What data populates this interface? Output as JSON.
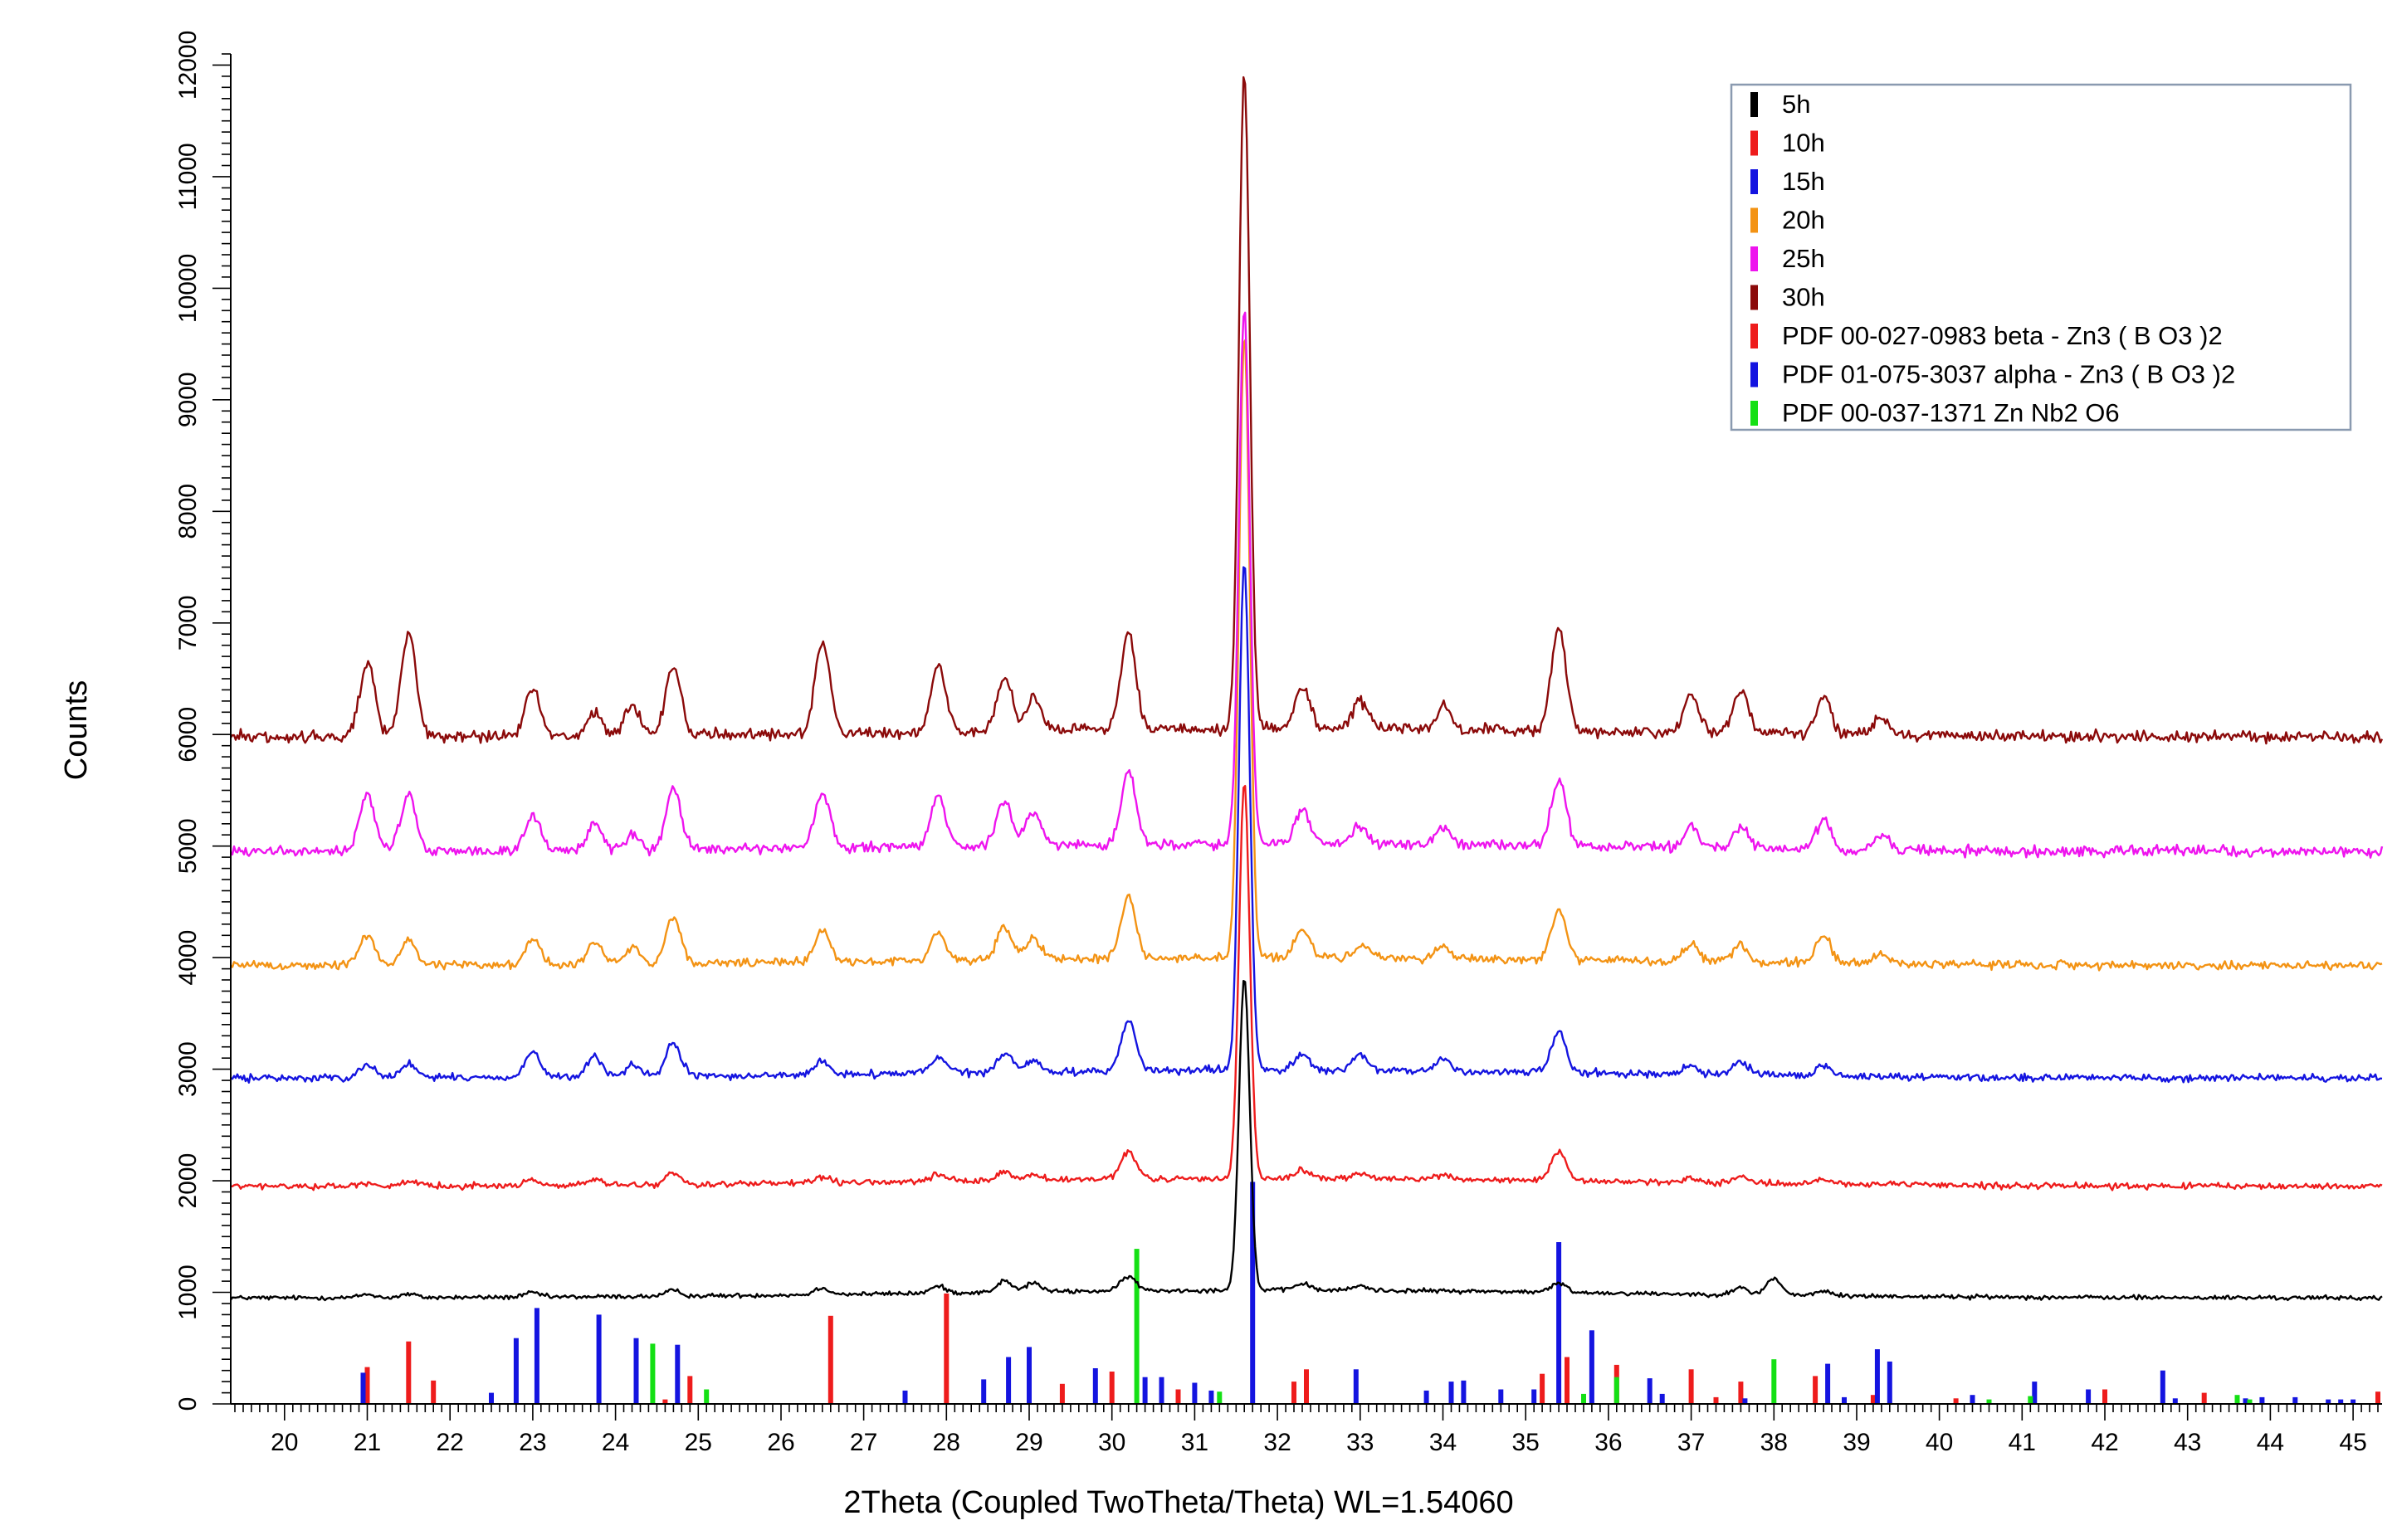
{
  "chart_data": {
    "type": "line",
    "xlabel": "2Theta (Coupled TwoTheta/Theta) WL=1.54060",
    "ylabel": "Counts",
    "xlim": [
      19.35,
      45.35
    ],
    "ylim": [
      0,
      12100
    ],
    "x_ticks": [
      20,
      21,
      22,
      23,
      24,
      25,
      26,
      27,
      28,
      29,
      30,
      31,
      32,
      33,
      34,
      35,
      36,
      37,
      38,
      39,
      40,
      41,
      42,
      43,
      44,
      45
    ],
    "y_ticks": [
      0,
      1000,
      2000,
      3000,
      4000,
      5000,
      6000,
      7000,
      8000,
      9000,
      10000,
      11000,
      12000
    ],
    "legend_position": "top-right",
    "common_peaks_2theta": [
      21.0,
      21.5,
      23.0,
      23.75,
      24.7,
      26.5,
      27.9,
      28.7,
      29.05,
      30.2,
      31.6,
      32.3,
      33.0,
      34.0,
      35.4,
      37.0,
      37.6,
      38.6,
      39.3
    ],
    "series": [
      {
        "name": "5h",
        "color": "#000000",
        "baseline": 950,
        "peaks": [
          [
            31.6,
            2800
          ],
          [
            21.0,
            30
          ],
          [
            21.5,
            30
          ],
          [
            23.0,
            40
          ],
          [
            24.7,
            50
          ],
          [
            26.5,
            60
          ],
          [
            27.9,
            60
          ],
          [
            28.7,
            100
          ],
          [
            29.05,
            80
          ],
          [
            30.2,
            130
          ],
          [
            32.3,
            60
          ],
          [
            33.0,
            40
          ],
          [
            35.4,
            80
          ],
          [
            37.6,
            60
          ],
          [
            38.0,
            150
          ],
          [
            38.6,
            40
          ]
        ]
      },
      {
        "name": "10h",
        "color": "#ee1c1c",
        "baseline": 1950,
        "peaks": [
          [
            31.6,
            3550
          ],
          [
            21.0,
            30
          ],
          [
            21.5,
            30
          ],
          [
            23.0,
            50
          ],
          [
            23.75,
            50
          ],
          [
            24.7,
            100
          ],
          [
            26.5,
            50
          ],
          [
            27.9,
            60
          ],
          [
            28.7,
            80
          ],
          [
            29.05,
            50
          ],
          [
            30.2,
            250
          ],
          [
            32.3,
            80
          ],
          [
            33.0,
            50
          ],
          [
            34.0,
            40
          ],
          [
            35.4,
            250
          ],
          [
            37.0,
            40
          ],
          [
            37.6,
            60
          ],
          [
            38.6,
            40
          ]
        ]
      },
      {
        "name": "15h",
        "color": "#1414e0",
        "baseline": 2920,
        "peaks": [
          [
            31.6,
            4550
          ],
          [
            21.0,
            130
          ],
          [
            21.5,
            130
          ],
          [
            23.0,
            230
          ],
          [
            23.75,
            180
          ],
          [
            24.2,
            100
          ],
          [
            24.7,
            300
          ],
          [
            26.5,
            120
          ],
          [
            27.9,
            150
          ],
          [
            28.7,
            170
          ],
          [
            29.05,
            100
          ],
          [
            30.2,
            450
          ],
          [
            32.3,
            150
          ],
          [
            33.0,
            130
          ],
          [
            34.0,
            110
          ],
          [
            35.4,
            370
          ],
          [
            37.0,
            80
          ],
          [
            37.6,
            110
          ],
          [
            38.6,
            90
          ]
        ]
      },
      {
        "name": "20h",
        "color": "#f39314",
        "baseline": 3930,
        "peaks": [
          [
            31.6,
            5570
          ],
          [
            21.0,
            270
          ],
          [
            21.5,
            230
          ],
          [
            23.0,
            230
          ],
          [
            23.75,
            200
          ],
          [
            24.2,
            150
          ],
          [
            24.7,
            400
          ],
          [
            26.5,
            300
          ],
          [
            27.9,
            250
          ],
          [
            28.7,
            300
          ],
          [
            29.05,
            200
          ],
          [
            30.2,
            550
          ],
          [
            32.3,
            250
          ],
          [
            33.0,
            120
          ],
          [
            34.0,
            110
          ],
          [
            35.4,
            450
          ],
          [
            37.0,
            150
          ],
          [
            37.6,
            150
          ],
          [
            38.6,
            250
          ],
          [
            39.3,
            80
          ]
        ]
      },
      {
        "name": "25h",
        "color": "#ee14ee",
        "baseline": 4950,
        "peaks": [
          [
            31.6,
            4800
          ],
          [
            21.0,
            520
          ],
          [
            21.5,
            520
          ],
          [
            23.0,
            330
          ],
          [
            23.75,
            230
          ],
          [
            24.2,
            150
          ],
          [
            24.7,
            550
          ],
          [
            26.5,
            500
          ],
          [
            27.9,
            450
          ],
          [
            28.7,
            400
          ],
          [
            29.05,
            300
          ],
          [
            30.2,
            650
          ],
          [
            32.3,
            300
          ],
          [
            33.0,
            150
          ],
          [
            34.0,
            150
          ],
          [
            35.4,
            600
          ],
          [
            37.0,
            200
          ],
          [
            37.6,
            200
          ],
          [
            38.6,
            260
          ],
          [
            39.3,
            130
          ]
        ]
      },
      {
        "name": "30h",
        "color": "#8b0a0a",
        "baseline": 5980,
        "peaks": [
          [
            31.6,
            5900
          ],
          [
            21.0,
            660
          ],
          [
            21.5,
            920
          ],
          [
            23.0,
            430
          ],
          [
            23.75,
            200
          ],
          [
            24.2,
            250
          ],
          [
            24.7,
            630
          ],
          [
            26.5,
            820
          ],
          [
            27.9,
            600
          ],
          [
            28.7,
            500
          ],
          [
            29.05,
            300
          ],
          [
            30.2,
            850
          ],
          [
            32.3,
            380
          ],
          [
            33.0,
            250
          ],
          [
            34.0,
            200
          ],
          [
            35.4,
            900
          ],
          [
            37.0,
            350
          ],
          [
            37.6,
            380
          ],
          [
            38.6,
            360
          ],
          [
            39.3,
            150
          ]
        ]
      }
    ],
    "reference_patterns": [
      {
        "name": "PDF 00-027-0983  beta - Zn3 ( B O3 )2",
        "color": "#ee1c1c",
        "lines": [
          [
            21.0,
            330
          ],
          [
            21.5,
            560
          ],
          [
            21.8,
            210
          ],
          [
            24.6,
            40
          ],
          [
            24.9,
            250
          ],
          [
            26.6,
            790
          ],
          [
            28.0,
            990
          ],
          [
            29.4,
            180
          ],
          [
            30.0,
            290
          ],
          [
            30.8,
            130
          ],
          [
            32.2,
            200
          ],
          [
            32.35,
            310
          ],
          [
            35.2,
            270
          ],
          [
            35.5,
            420
          ],
          [
            36.1,
            350
          ],
          [
            37.0,
            310
          ],
          [
            37.3,
            60
          ],
          [
            37.6,
            200
          ],
          [
            38.5,
            250
          ],
          [
            39.2,
            80
          ],
          [
            40.2,
            50
          ],
          [
            42.0,
            130
          ],
          [
            43.2,
            100
          ],
          [
            45.3,
            110
          ]
        ]
      },
      {
        "name": "PDF 01-075-3037  alpha - Zn3 ( B O3 )2",
        "color": "#1414e0",
        "lines": [
          [
            20.95,
            280
          ],
          [
            22.5,
            100
          ],
          [
            22.8,
            590
          ],
          [
            23.05,
            860
          ],
          [
            23.8,
            800
          ],
          [
            24.25,
            590
          ],
          [
            24.75,
            530
          ],
          [
            27.5,
            120
          ],
          [
            28.45,
            220
          ],
          [
            28.75,
            420
          ],
          [
            29.0,
            510
          ],
          [
            29.8,
            320
          ],
          [
            30.4,
            240
          ],
          [
            30.6,
            240
          ],
          [
            31.0,
            190
          ],
          [
            31.2,
            120
          ],
          [
            31.7,
            1990
          ],
          [
            32.95,
            310
          ],
          [
            33.8,
            120
          ],
          [
            34.1,
            200
          ],
          [
            34.25,
            210
          ],
          [
            34.7,
            130
          ],
          [
            35.1,
            130
          ],
          [
            35.4,
            1450
          ],
          [
            35.8,
            660
          ],
          [
            36.5,
            230
          ],
          [
            36.65,
            90
          ],
          [
            37.65,
            50
          ],
          [
            38.65,
            360
          ],
          [
            38.85,
            60
          ],
          [
            39.25,
            490
          ],
          [
            39.4,
            380
          ],
          [
            40.4,
            80
          ],
          [
            41.15,
            200
          ],
          [
            41.8,
            130
          ],
          [
            42.7,
            300
          ],
          [
            42.85,
            50
          ],
          [
            43.7,
            50
          ],
          [
            43.9,
            60
          ],
          [
            44.3,
            60
          ],
          [
            44.7,
            40
          ],
          [
            44.85,
            40
          ],
          [
            45.0,
            40
          ]
        ]
      },
      {
        "name": "PDF 00-037-1371  Zn Nb2 O6",
        "color": "#14e014",
        "lines": [
          [
            24.45,
            540
          ],
          [
            25.1,
            130
          ],
          [
            30.3,
            1390
          ],
          [
            31.3,
            110
          ],
          [
            35.7,
            90
          ],
          [
            36.1,
            240
          ],
          [
            38.0,
            400
          ],
          [
            40.6,
            40
          ],
          [
            41.1,
            70
          ],
          [
            43.6,
            80
          ],
          [
            43.75,
            40
          ]
        ]
      }
    ]
  }
}
